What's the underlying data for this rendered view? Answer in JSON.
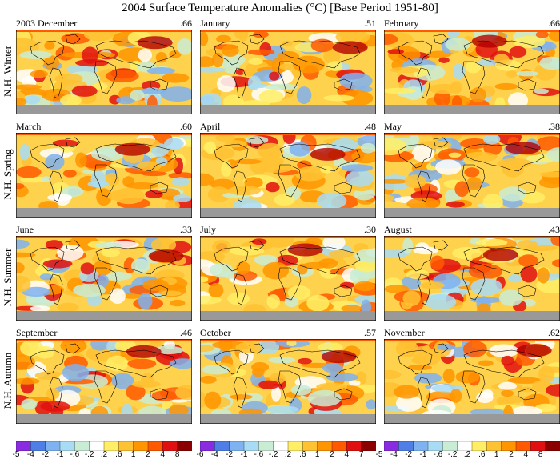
{
  "title": "2004 Surface Temperature Anomalies (°C) [Base Period 1951-80]",
  "seasons": [
    "N.H. Winter",
    "N.H. Spring",
    "N.H. Summer",
    "N.H. Autumn"
  ],
  "panels": [
    {
      "label": "2003 December",
      "value": ".66"
    },
    {
      "label": "January",
      "value": ".51"
    },
    {
      "label": "February",
      "value": ".66"
    },
    {
      "label": "March",
      "value": ".60"
    },
    {
      "label": "April",
      "value": ".48"
    },
    {
      "label": "May",
      "value": ".38"
    },
    {
      "label": "June",
      "value": ".33"
    },
    {
      "label": "July",
      "value": ".30"
    },
    {
      "label": "August",
      "value": ".43"
    },
    {
      "label": "September",
      "value": ".46"
    },
    {
      "label": "October",
      "value": ".57"
    },
    {
      "label": "November",
      "value": ".62"
    }
  ],
  "legend": {
    "colors": [
      "#8a2be2",
      "#4f7fe6",
      "#7fb2f0",
      "#a8dcf6",
      "#c9ecd5",
      "#ffffff",
      "#ffee66",
      "#ffc233",
      "#ff9500",
      "#ff5a00",
      "#e01010",
      "#8b0000"
    ],
    "ticks_left": [
      "-5",
      "-4",
      "-2",
      "-1",
      "-.6",
      "-.2",
      ".2",
      ".6",
      "1",
      "2",
      "4",
      "8"
    ],
    "ticks_middle": [
      "-6",
      "-4",
      "-2",
      "-1",
      "-.6",
      "-.2",
      ".2",
      ".6",
      "1",
      "2",
      "4",
      "7"
    ],
    "ticks_right": [
      "-5",
      "-4",
      "-2",
      "-1",
      "-.6",
      "-.2",
      ".2",
      ".6",
      "1",
      "2",
      "4",
      "8"
    ],
    "missing_color": "#999999"
  }
}
